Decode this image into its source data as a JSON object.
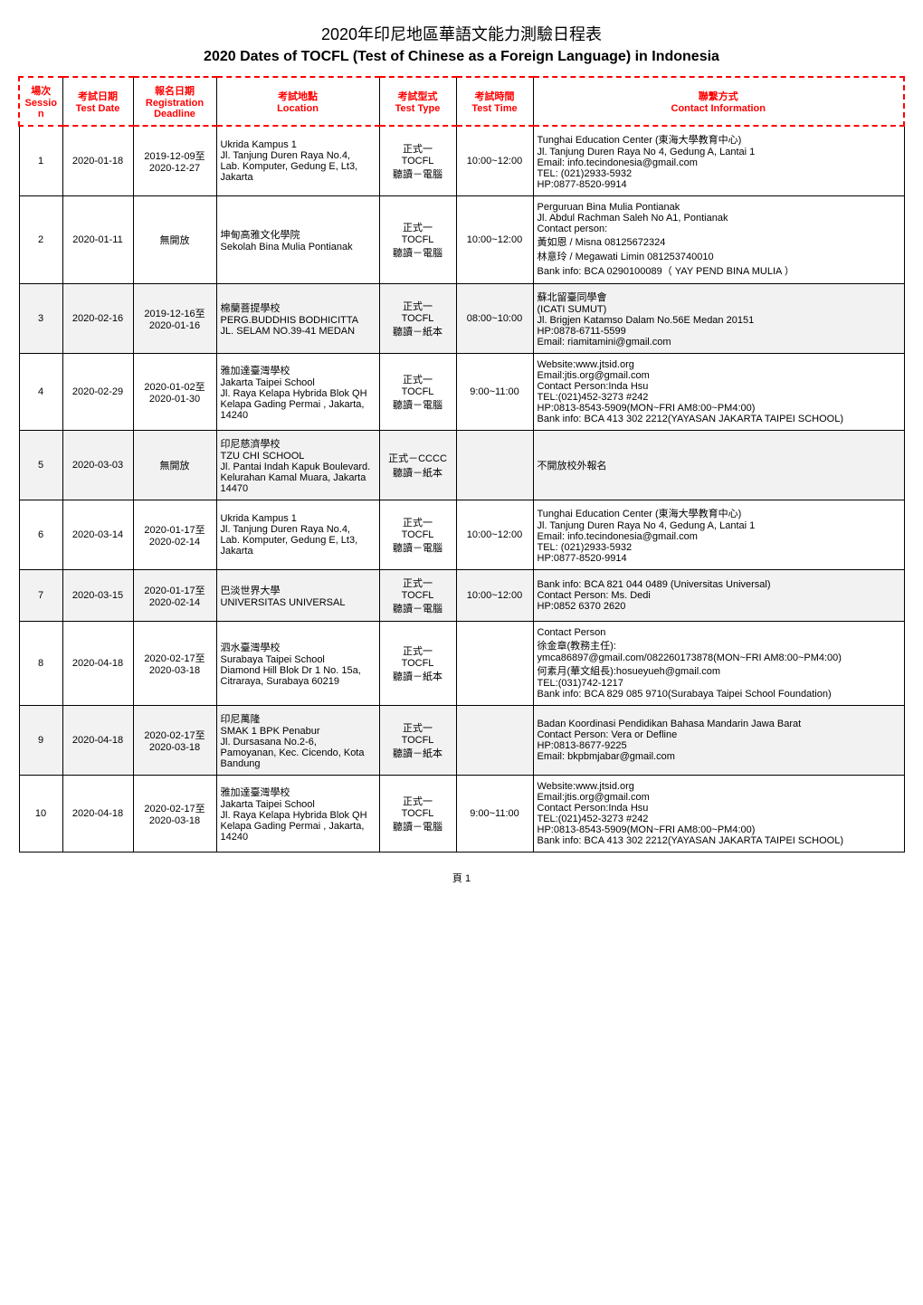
{
  "title_zh": "2020年印尼地區華語文能力測驗日程表",
  "title_en": "2020 Dates of TOCFL (Test of Chinese as a Foreign Language) in Indonesia",
  "page_label": "頁 1",
  "columns": [
    {
      "zh": "場次",
      "en": "Session"
    },
    {
      "zh": "考試日期",
      "en": "Test Date"
    },
    {
      "zh": "報名日期",
      "en": "Registration Deadline"
    },
    {
      "zh": "考試地點",
      "en": "Location"
    },
    {
      "zh": "考試型式",
      "en": "Test Type"
    },
    {
      "zh": "考試時間",
      "en": "Test Time"
    },
    {
      "zh": "聯繫方式",
      "en": "Contact Information"
    }
  ],
  "rows": [
    {
      "session": "1",
      "test_date": "2020-01-18",
      "deadline": "2019-12-09至2020-12-27",
      "location": "Ukrida Kampus 1\nJl. Tanjung Duren Raya No.4,\nLab. Komputer, Gedung E, Lt3, Jakarta",
      "test_type": "正式一\nTOCFL\n聽讀－電腦",
      "test_time": "10:00~12:00",
      "contact": "Tunghai Education Center (東海大學教育中心)\nJl. Tanjung Duren Raya No 4, Gedung A, Lantai 1\nEmail: info.tecindonesia@gmail.com\nTEL: (021)2933-5932\nHP:0877-8520-9914",
      "shaded": false
    },
    {
      "session": "2",
      "test_date": "2020-01-11",
      "deadline": "無開放",
      "location": "坤甸高雅文化學院\nSekolah Bina Mulia Pontianak",
      "test_type": "正式一\nTOCFL\n聽讀－電腦",
      "test_time": "10:00~12:00",
      "contact": "Perguruan Bina Mulia Pontianak\nJl. Abdul Rachman Saleh No A1, Pontianak\nContact person:\n黃如恩 / Misna 08125672324\n林意玲 / Megawati Limin 081253740010\nBank info: BCA 0290100089（ YAY PEND BINA MULIA ）",
      "shaded": false
    },
    {
      "session": "3",
      "test_date": "2020-02-16",
      "deadline": "2019-12-16至2020-01-16",
      "location": "棉蘭菩提學校\nPERG.BUDDHIS BODHICITTA\nJL. SELAM NO.39-41 MEDAN",
      "test_type": "正式一\nTOCFL\n聽讀－紙本",
      "test_time": "08:00~10:00",
      "contact": "蘇北留臺同學會\n(ICATI SUMUT)\nJl. Brigjen Katamso Dalam No.56E Medan 20151\nHP:0878-6711-5599\nEmail: riamitamini@gmail.com",
      "shaded": true
    },
    {
      "session": "4",
      "test_date": "2020-02-29",
      "deadline": "2020-01-02至2020-01-30",
      "location": "雅加達臺灣學校\nJakarta Taipei School\nJl. Raya Kelapa Hybrida Blok QH Kelapa Gading Permai , Jakarta, 14240",
      "test_type": "正式一\nTOCFL\n聽讀－電腦",
      "test_time": "9:00~11:00",
      "contact": "Website:www.jtsid.org\nEmail:jtis.org@gmail.com\nContact Person:Inda Hsu\nTEL:(021)452-3273 #242\nHP:0813-8543-5909(MON~FRI AM8:00~PM4:00)\nBank info: BCA 413 302 2212(YAYASAN JAKARTA TAIPEI SCHOOL)",
      "shaded": false
    },
    {
      "session": "5",
      "test_date": "2020-03-03",
      "deadline": "無開放",
      "location": "印尼慈濟學校\nTZU CHI SCHOOL\nJl. Pantai Indah Kapuk Boulevard. Kelurahan Kamal Muara, Jakarta 14470",
      "test_type": "正式－CCCC\n聽讀－紙本",
      "test_time": "",
      "contact": "不開放校外報名",
      "shaded": true
    },
    {
      "session": "6",
      "test_date": "2020-03-14",
      "deadline": "2020-01-17至2020-02-14",
      "location": "Ukrida Kampus 1\nJl. Tanjung Duren Raya No.4,\nLab. Komputer, Gedung E, Lt3, Jakarta",
      "test_type": "正式一\nTOCFL\n聽讀－電腦",
      "test_time": "10:00~12:00",
      "contact": "Tunghai Education Center (東海大學教育中心)\nJl. Tanjung Duren Raya No 4, Gedung A, Lantai 1\nEmail: info.tecindonesia@gmail.com\nTEL: (021)2933-5932\nHP:0877-8520-9914",
      "shaded": false
    },
    {
      "session": "7",
      "test_date": "2020-03-15",
      "deadline": "2020-01-17至2020-02-14",
      "location": "巴淡世界大學\nUNIVERSITAS UNIVERSAL",
      "test_type": "正式一\nTOCFL\n聽讀－電腦",
      "test_time": "10:00~12:00",
      "contact": "Bank info: BCA 821 044 0489  (Universitas Universal)\nContact Person: Ms. Dedi\nHP:0852 6370 2620",
      "shaded": true
    },
    {
      "session": "8",
      "test_date": "2020-04-18",
      "deadline": "2020-02-17至2020-03-18",
      "location": "泗水臺灣學校\nSurabaya Taipei School\nDiamond Hill Blok Dr 1 No. 15a, Citraraya, Surabaya 60219",
      "test_type": "正式一\nTOCFL\n聽讀－紙本",
      "test_time": "",
      "contact": "Contact Person\n徐金章(教務主任):\nymca86897@gmail.com/082260173878(MON~FRI AM8:00~PM4:00)\n何素月(華文組長):hosueyueh@gmail.com\nTEL:(031)742-1217\nBank info: BCA 829 085 9710(Surabaya Taipei School Foundation)",
      "shaded": false
    },
    {
      "session": "9",
      "test_date": "2020-04-18",
      "deadline": "2020-02-17至2020-03-18",
      "location": "印尼萬隆\nSMAK 1 BPK Penabur\nJl. Dursasana No.2-6, Pamoyanan, Kec. Cicendo, Kota Bandung",
      "test_type": "正式一\nTOCFL\n聽讀－紙本",
      "test_time": "",
      "contact": "Badan Koordinasi Pendidikan Bahasa Mandarin Jawa Barat\nContact Person: Vera or Defline\nHP:0813-8677-9225\nEmail: bkpbmjabar@gmail.com",
      "shaded": true
    },
    {
      "session": "10",
      "test_date": "2020-04-18",
      "deadline": "2020-02-17至2020-03-18",
      "location": "雅加達臺灣學校\nJakarta Taipei School\nJl. Raya Kelapa Hybrida Blok QH Kelapa Gading Permai , Jakarta, 14240",
      "test_type": "正式一\nTOCFL\n聽讀－電腦",
      "test_time": "9:00~11:00",
      "contact": "Website:www.jtsid.org\nEmail:jtis.org@gmail.com\nContact Person:Inda Hsu\nTEL:(021)452-3273 #242\nHP:0813-8543-5909(MON~FRI AM8:00~PM4:00)\nBank info: BCA 413 302 2212(YAYASAN JAKARTA TAIPEI SCHOOL)",
      "shaded": false
    }
  ],
  "colors": {
    "header_text": "#ff0000",
    "header_border": "#ff0000",
    "cell_border": "#000000",
    "shaded_bg": "#f2f2f2",
    "page_bg": "#ffffff"
  }
}
